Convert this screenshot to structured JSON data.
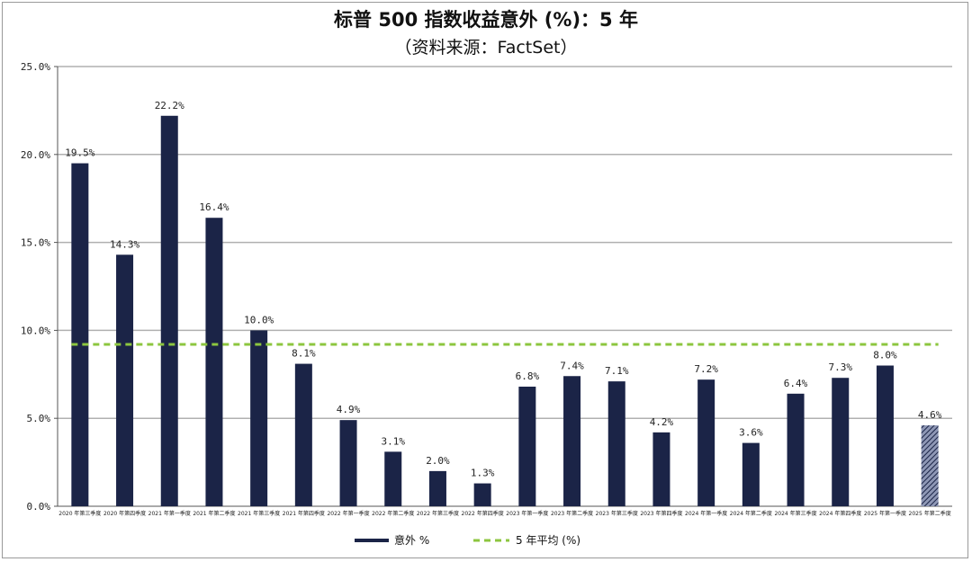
{
  "chart_data": {
    "type": "bar",
    "title": "标普 500 指数收益意外 (%)：5 年",
    "subtitle": "（资料来源：FactSet）",
    "categories": [
      "2020 年第三季度",
      "2020 年第四季度",
      "2021 年第一季度",
      "2021 年第二季度",
      "2021 年第三季度",
      "2021 年第四季度",
      "2022 年第一季度",
      "2022 年第二季度",
      "2022 年第三季度",
      "2022 年第四季度",
      "2023 年第一季度",
      "2023 年第二季度",
      "2023 年第三季度",
      "2023 年第四季度",
      "2024 年第一季度",
      "2024 年第二季度",
      "2024 年第三季度",
      "2024 年第四季度",
      "2025 年第一季度",
      "2025 年第二季度"
    ],
    "series": [
      {
        "name": "意外 %",
        "values": [
          19.5,
          14.3,
          22.2,
          16.4,
          10.0,
          8.1,
          4.9,
          3.1,
          2.0,
          1.3,
          6.8,
          7.4,
          7.1,
          4.2,
          7.2,
          3.6,
          6.4,
          7.3,
          8.0,
          4.6
        ],
        "data_labels": [
          "19.5%",
          "14.3%",
          "22.2%",
          "16.4%",
          "10.0%",
          "8.1%",
          "4.9%",
          "3.1%",
          "2.0%",
          "1.3%",
          "6.8%",
          "7.4%",
          "7.1%",
          "4.2%",
          "7.2%",
          "3.6%",
          "6.4%",
          "7.3%",
          "8.0%",
          "4.6%"
        ],
        "color": "#1b2447",
        "last_bar_hatched": true
      },
      {
        "name": "5 年平均 (%)",
        "type": "line",
        "style": "dashed",
        "value": 9.2,
        "color": "#8cc63f"
      }
    ],
    "yticks": [
      "0.0%",
      "5.0%",
      "10.0%",
      "15.0%",
      "20.0%",
      "25.0%"
    ],
    "ylim": [
      0,
      25
    ],
    "grid": true,
    "legend": "bottom-center"
  }
}
